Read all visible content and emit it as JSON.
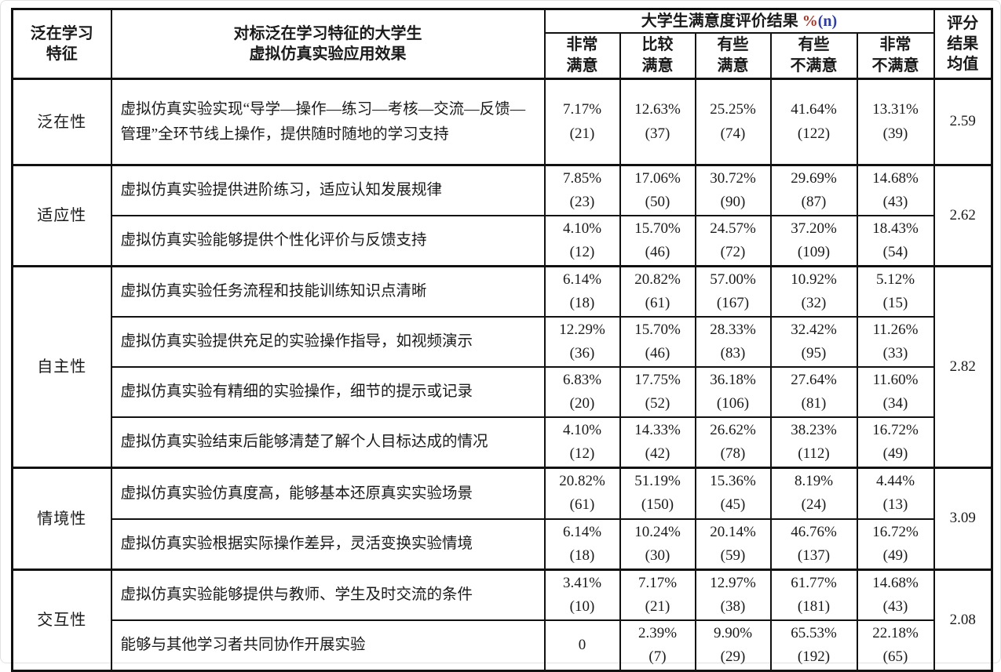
{
  "table": {
    "header": {
      "feature": "泛在学习\n特征",
      "effect": "对标泛在学习特征的大学生\n虚拟仿真实验应用效果",
      "results_title": "大学生满意度评价结果",
      "results_pct": "%",
      "results_n": "(n)",
      "levels": [
        "非常\n满意",
        "比较\n满意",
        "有些\n满意",
        "有些\n不满意",
        "非常\n不满意"
      ],
      "mean": "评分\n结果\n均值"
    },
    "groups": [
      {
        "feature": "泛在性",
        "mean": "2.59",
        "rows": [
          {
            "effect": "虚拟仿真实验实现“导学—操作—练习—考核—交流—反馈—管理”全环节线上操作，提供随时随地的学习支持",
            "cells": [
              [
                "7.17%",
                "(21)"
              ],
              [
                "12.63%",
                "(37)"
              ],
              [
                "25.25%",
                "(74)"
              ],
              [
                "41.64%",
                "(122)"
              ],
              [
                "13.31%",
                "(39)"
              ]
            ]
          }
        ]
      },
      {
        "feature": "适应性",
        "mean": "2.62",
        "rows": [
          {
            "effect": "虚拟仿真实验提供进阶练习，适应认知发展规律",
            "cells": [
              [
                "7.85%",
                "(23)"
              ],
              [
                "17.06%",
                "(50)"
              ],
              [
                "30.72%",
                "(90)"
              ],
              [
                "29.69%",
                "(87)"
              ],
              [
                "14.68%",
                "(43)"
              ]
            ]
          },
          {
            "effect": "虚拟仿真实验能够提供个性化评价与反馈支持",
            "cells": [
              [
                "4.10%",
                "(12)"
              ],
              [
                "15.70%",
                "(46)"
              ],
              [
                "24.57%",
                "(72)"
              ],
              [
                "37.20%",
                "(109)"
              ],
              [
                "18.43%",
                "(54)"
              ]
            ]
          }
        ]
      },
      {
        "feature": "自主性",
        "mean": "2.82",
        "rows": [
          {
            "effect": "虚拟仿真实验任务流程和技能训练知识点清晰",
            "cells": [
              [
                "6.14%",
                "(18)"
              ],
              [
                "20.82%",
                "(61)"
              ],
              [
                "57.00%",
                "(167)"
              ],
              [
                "10.92%",
                "(32)"
              ],
              [
                "5.12%",
                "(15)"
              ]
            ]
          },
          {
            "effect": "虚拟仿真实验提供充足的实验操作指导，如视频演示",
            "cells": [
              [
                "12.29%",
                "(36)"
              ],
              [
                "15.70%",
                "(46)"
              ],
              [
                "28.33%",
                "(83)"
              ],
              [
                "32.42%",
                "(95)"
              ],
              [
                "11.26%",
                "(33)"
              ]
            ]
          },
          {
            "effect": "虚拟仿真实验有精细的实验操作，细节的提示或记录",
            "cells": [
              [
                "6.83%",
                "(20)"
              ],
              [
                "17.75%",
                "(52)"
              ],
              [
                "36.18%",
                "(106)"
              ],
              [
                "27.64%",
                "(81)"
              ],
              [
                "11.60%",
                "(34)"
              ]
            ]
          },
          {
            "effect": "虚拟仿真实验结束后能够清楚了解个人目标达成的情况",
            "cells": [
              [
                "4.10%",
                "(12)"
              ],
              [
                "14.33%",
                "(42)"
              ],
              [
                "26.62%",
                "(78)"
              ],
              [
                "38.23%",
                "(112)"
              ],
              [
                "16.72%",
                "(49)"
              ]
            ]
          }
        ]
      },
      {
        "feature": "情境性",
        "mean": "3.09",
        "rows": [
          {
            "effect": "虚拟仿真实验仿真度高，能够基本还原真实实验场景",
            "cells": [
              [
                "20.82%",
                "(61)"
              ],
              [
                "51.19%",
                "(150)"
              ],
              [
                "15.36%",
                "(45)"
              ],
              [
                "8.19%",
                "(24)"
              ],
              [
                "4.44%",
                "(13)"
              ]
            ]
          },
          {
            "effect": "虚拟仿真实验根据实际操作差异，灵活变换实验情境",
            "cells": [
              [
                "6.14%",
                "(18)"
              ],
              [
                "10.24%",
                "(30)"
              ],
              [
                "20.14%",
                "(59)"
              ],
              [
                "46.76%",
                "(137)"
              ],
              [
                "16.72%",
                "(49)"
              ]
            ]
          }
        ]
      },
      {
        "feature": "交互性",
        "mean": "2.08",
        "rows": [
          {
            "effect": "虚拟仿真实验能够提供与教师、学生及时交流的条件",
            "cells": [
              [
                "3.41%",
                "(10)"
              ],
              [
                "7.17%",
                "(21)"
              ],
              [
                "12.97%",
                "(38)"
              ],
              [
                "61.77%",
                "(181)"
              ],
              [
                "14.68%",
                "(43)"
              ]
            ]
          },
          {
            "effect": "能够与其他学习者共同协作开展实验",
            "cells": [
              [
                "0"
              ],
              [
                "2.39%",
                "(7)"
              ],
              [
                "9.90%",
                "(29)"
              ],
              [
                "65.53%",
                "(192)"
              ],
              [
                "22.18%",
                "(65)"
              ]
            ]
          }
        ]
      }
    ]
  }
}
